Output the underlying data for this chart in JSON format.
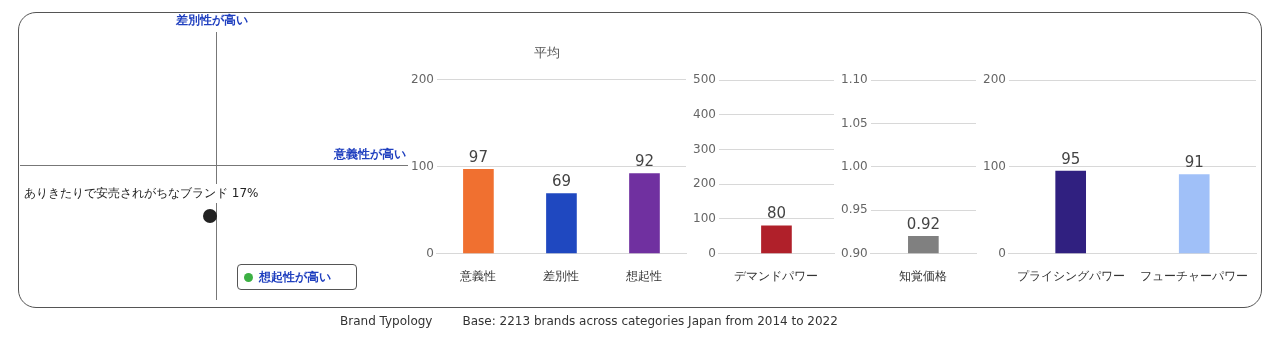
{
  "chart_data": [
    {
      "type": "other",
      "xlabel": "意義性が高い",
      "ylabel": "差別性が高い",
      "annotations": [
        "ありきたりで安売されがちなブランド 17%",
        "想起性が高い",
        "Brand Typology",
        "Base: 2213 brands across categories Japan from 2014 to 2022"
      ]
    },
    {
      "type": "bar",
      "title": "平均",
      "categories": [
        "意義性",
        "差別性",
        "想起性"
      ],
      "values": [
        97,
        69,
        92
      ],
      "colors": [
        "#f07030",
        "#1f48c0",
        "#7030a0"
      ],
      "ylim": [
        0,
        200
      ],
      "yticks": [
        0,
        100,
        200
      ],
      "grid": "y",
      "data_labels": true
    },
    {
      "type": "bar",
      "categories": [
        "デマンドパワー"
      ],
      "values": [
        80
      ],
      "colors": [
        "#b0202a"
      ],
      "ylim": [
        0,
        500
      ],
      "yticks": [
        0,
        100,
        200,
        300,
        400,
        500
      ],
      "grid": "y",
      "data_labels": true
    },
    {
      "type": "bar",
      "categories": [
        "知覚価格"
      ],
      "values": [
        0.92
      ],
      "colors": [
        "#808080"
      ],
      "ylim": [
        0.9,
        1.1
      ],
      "yticks": [
        {
          "value": 0.9,
          "label": "0.90"
        },
        {
          "value": 0.95,
          "label": "0.95"
        },
        {
          "value": 1,
          "label": "1.00"
        },
        {
          "value": 1.05,
          "label": "1.05"
        },
        {
          "value": 1.1,
          "label": "1.10"
        }
      ],
      "grid": "y",
      "data_labels": true
    },
    {
      "type": "bar",
      "categories": [
        "プライシングパワー",
        "フューチャーパワー"
      ],
      "values": [
        95,
        91
      ],
      "colors": [
        "#302080",
        "#a0c0f8"
      ],
      "ylim": [
        0,
        200
      ],
      "yticks": [
        0,
        100,
        200
      ],
      "grid": "y",
      "data_labels": true
    }
  ]
}
